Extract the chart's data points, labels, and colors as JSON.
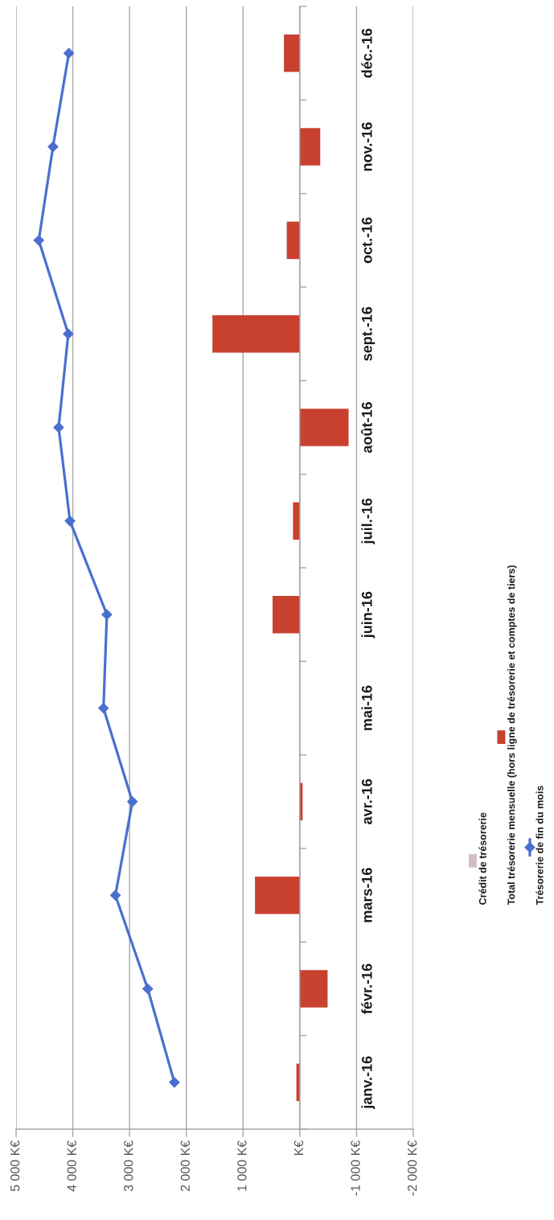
{
  "chart_data": {
    "type": "bar",
    "orientation": "horizontal",
    "categories": [
      "déc.-16",
      "nov.-16",
      "oct.-16",
      "sept.-16",
      "août-16",
      "juil.-16",
      "juin-16",
      "mai-16",
      "avr.-16",
      "mars-16",
      "févr.-16",
      "janv.-16"
    ],
    "series": [
      {
        "name": "Crédit de trésorerie",
        "color": "#d3bfc3",
        "values": [
          null,
          null,
          null,
          null,
          null,
          null,
          null,
          null,
          null,
          null,
          null,
          null
        ]
      },
      {
        "name": "Total trésorerie mensuelle (hors ligne de trésorerie et comptes de tiers)",
        "color": "#c8412f",
        "values": [
          280,
          -360,
          230,
          1540,
          -860,
          120,
          480,
          null,
          -50,
          790,
          -490,
          60
        ]
      },
      {
        "name": "Trésorerie de fin du mois",
        "type": "line",
        "color": "#4a6fd0",
        "marker": "diamond",
        "line_style": "solid",
        "values": [
          4070,
          4350,
          4600,
          4080,
          4250,
          4050,
          3400,
          3460,
          2950,
          3250,
          2680,
          2210
        ]
      }
    ],
    "xlim": [
      5000,
      -2000
    ],
    "xticks": [
      {
        "value": 5000,
        "label": "5 000 K€"
      },
      {
        "value": 4000,
        "label": "4 000 K€"
      },
      {
        "value": 3000,
        "label": "3 000 K€"
      },
      {
        "value": 2000,
        "label": "2 000 K€"
      },
      {
        "value": 1000,
        "label": "1 000 K€"
      },
      {
        "value": 0,
        "label": "K€"
      },
      {
        "value": -1000,
        "label": "-1 000 K€"
      },
      {
        "value": -2000,
        "label": "-2 000 K€"
      }
    ],
    "grid": "x",
    "legend": "right"
  }
}
